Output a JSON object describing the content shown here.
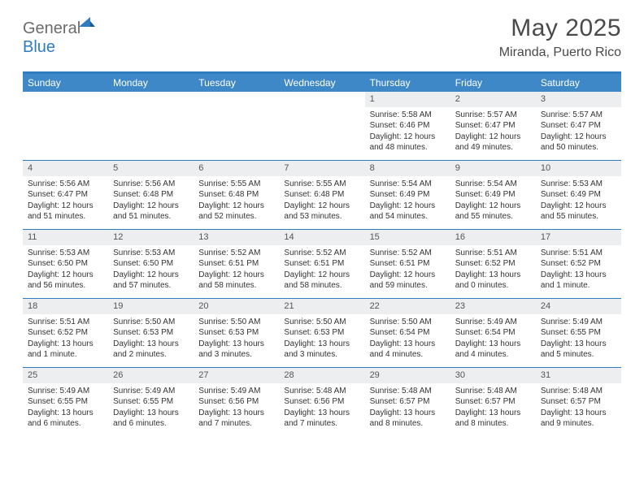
{
  "brand": {
    "part1": "General",
    "part2": "Blue"
  },
  "title": "May 2025",
  "location": "Miranda, Puerto Rico",
  "colors": {
    "accent": "#2f7cc0",
    "header_bg": "#3e88c8",
    "daynum_bg": "#eceeef",
    "text": "#333333",
    "muted": "#6b6b6b",
    "white": "#ffffff"
  },
  "day_headers": [
    "Sunday",
    "Monday",
    "Tuesday",
    "Wednesday",
    "Thursday",
    "Friday",
    "Saturday"
  ],
  "weeks": [
    [
      null,
      null,
      null,
      null,
      {
        "n": "1",
        "sr": "5:58 AM",
        "ss": "6:46 PM",
        "dl": "12 hours and 48 minutes."
      },
      {
        "n": "2",
        "sr": "5:57 AM",
        "ss": "6:47 PM",
        "dl": "12 hours and 49 minutes."
      },
      {
        "n": "3",
        "sr": "5:57 AM",
        "ss": "6:47 PM",
        "dl": "12 hours and 50 minutes."
      }
    ],
    [
      {
        "n": "4",
        "sr": "5:56 AM",
        "ss": "6:47 PM",
        "dl": "12 hours and 51 minutes."
      },
      {
        "n": "5",
        "sr": "5:56 AM",
        "ss": "6:48 PM",
        "dl": "12 hours and 51 minutes."
      },
      {
        "n": "6",
        "sr": "5:55 AM",
        "ss": "6:48 PM",
        "dl": "12 hours and 52 minutes."
      },
      {
        "n": "7",
        "sr": "5:55 AM",
        "ss": "6:48 PM",
        "dl": "12 hours and 53 minutes."
      },
      {
        "n": "8",
        "sr": "5:54 AM",
        "ss": "6:49 PM",
        "dl": "12 hours and 54 minutes."
      },
      {
        "n": "9",
        "sr": "5:54 AM",
        "ss": "6:49 PM",
        "dl": "12 hours and 55 minutes."
      },
      {
        "n": "10",
        "sr": "5:53 AM",
        "ss": "6:49 PM",
        "dl": "12 hours and 55 minutes."
      }
    ],
    [
      {
        "n": "11",
        "sr": "5:53 AM",
        "ss": "6:50 PM",
        "dl": "12 hours and 56 minutes."
      },
      {
        "n": "12",
        "sr": "5:53 AM",
        "ss": "6:50 PM",
        "dl": "12 hours and 57 minutes."
      },
      {
        "n": "13",
        "sr": "5:52 AM",
        "ss": "6:51 PM",
        "dl": "12 hours and 58 minutes."
      },
      {
        "n": "14",
        "sr": "5:52 AM",
        "ss": "6:51 PM",
        "dl": "12 hours and 58 minutes."
      },
      {
        "n": "15",
        "sr": "5:52 AM",
        "ss": "6:51 PM",
        "dl": "12 hours and 59 minutes."
      },
      {
        "n": "16",
        "sr": "5:51 AM",
        "ss": "6:52 PM",
        "dl": "13 hours and 0 minutes."
      },
      {
        "n": "17",
        "sr": "5:51 AM",
        "ss": "6:52 PM",
        "dl": "13 hours and 1 minute."
      }
    ],
    [
      {
        "n": "18",
        "sr": "5:51 AM",
        "ss": "6:52 PM",
        "dl": "13 hours and 1 minute."
      },
      {
        "n": "19",
        "sr": "5:50 AM",
        "ss": "6:53 PM",
        "dl": "13 hours and 2 minutes."
      },
      {
        "n": "20",
        "sr": "5:50 AM",
        "ss": "6:53 PM",
        "dl": "13 hours and 3 minutes."
      },
      {
        "n": "21",
        "sr": "5:50 AM",
        "ss": "6:53 PM",
        "dl": "13 hours and 3 minutes."
      },
      {
        "n": "22",
        "sr": "5:50 AM",
        "ss": "6:54 PM",
        "dl": "13 hours and 4 minutes."
      },
      {
        "n": "23",
        "sr": "5:49 AM",
        "ss": "6:54 PM",
        "dl": "13 hours and 4 minutes."
      },
      {
        "n": "24",
        "sr": "5:49 AM",
        "ss": "6:55 PM",
        "dl": "13 hours and 5 minutes."
      }
    ],
    [
      {
        "n": "25",
        "sr": "5:49 AM",
        "ss": "6:55 PM",
        "dl": "13 hours and 6 minutes."
      },
      {
        "n": "26",
        "sr": "5:49 AM",
        "ss": "6:55 PM",
        "dl": "13 hours and 6 minutes."
      },
      {
        "n": "27",
        "sr": "5:49 AM",
        "ss": "6:56 PM",
        "dl": "13 hours and 7 minutes."
      },
      {
        "n": "28",
        "sr": "5:48 AM",
        "ss": "6:56 PM",
        "dl": "13 hours and 7 minutes."
      },
      {
        "n": "29",
        "sr": "5:48 AM",
        "ss": "6:57 PM",
        "dl": "13 hours and 8 minutes."
      },
      {
        "n": "30",
        "sr": "5:48 AM",
        "ss": "6:57 PM",
        "dl": "13 hours and 8 minutes."
      },
      {
        "n": "31",
        "sr": "5:48 AM",
        "ss": "6:57 PM",
        "dl": "13 hours and 9 minutes."
      }
    ]
  ],
  "labels": {
    "sunrise": "Sunrise:",
    "sunset": "Sunset:",
    "daylight": "Daylight:"
  }
}
